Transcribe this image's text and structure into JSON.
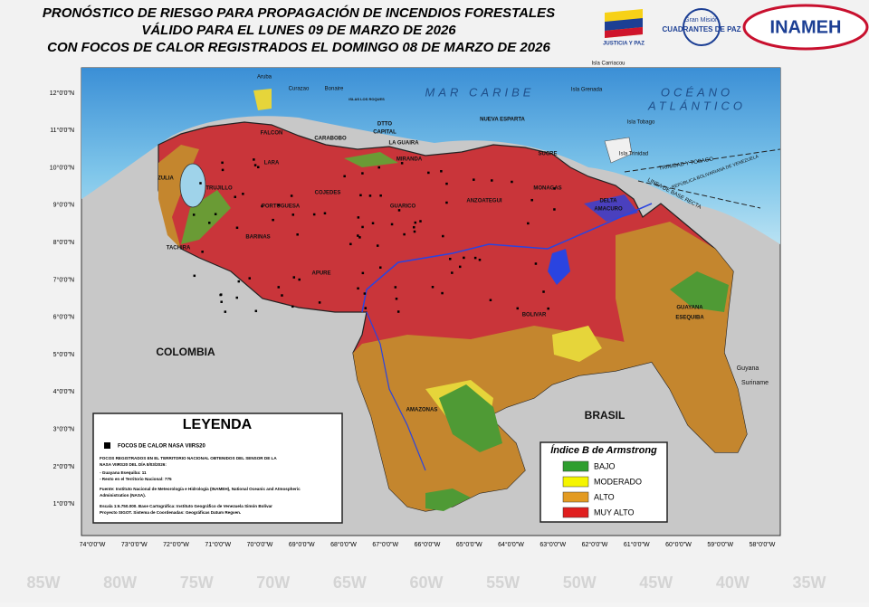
{
  "header": {
    "title_lines": [
      "PRONÓSTICO DE RIESGO PARA PROPAGACIÓN DE INCENDIOS FORESTALES",
      "VÁLIDO PARA EL LUNES 09 DE MARZO DE 2026",
      "CON FOCOS DE CALOR REGISTRADOS EL DOMINGO 08 DE MARZO DE 2026"
    ],
    "logos": [
      "JUSTICIA Y PAZ",
      "Gran Misión",
      "CUADRANTES DE PAZ",
      "INAMEH"
    ]
  },
  "map": {
    "latitude_labels": [
      "12°0'0\"N",
      "11°0'0\"N",
      "10°0'0\"N",
      "9°0'0\"N",
      "8°0'0\"N",
      "7°0'0\"N",
      "6°0'0\"N",
      "5°0'0\"N",
      "4°0'0\"N",
      "3°0'0\"N",
      "2°0'0\"N",
      "1°0'0\"N"
    ],
    "longitude_labels": [
      "74°0'0\"W",
      "73°0'0\"W",
      "72°0'0\"W",
      "71°0'0\"W",
      "70°0'0\"W",
      "69°0'0\"W",
      "68°0'0\"W",
      "67°0'0\"W",
      "66°0'0\"W",
      "65°0'0\"W",
      "64°0'0\"W",
      "63°0'0\"W",
      "62°0'0\"W",
      "61°0'0\"W",
      "60°0'0\"W",
      "59°0'0\"W",
      "58°0'0\"W"
    ],
    "place_labels": [
      "Aruba",
      "Curazao",
      "Bonaire",
      "ISLAS LOS ROQUES",
      "Isla Carriacou",
      "Isla Grenada",
      "Isla Tobago",
      "Isla Trinidad",
      "MAR CARIBE",
      "OCÉANO",
      "ATLÁNTICO",
      "DTTO",
      "CAPITAL",
      "NUEVA ESPARTA",
      "CARABOBO",
      "LA GUAIRA",
      "MIRANDA",
      "FALCON",
      "LARA",
      "ZULIA",
      "TRUJILLO",
      "COJEDES",
      "PORTUGUESA",
      "GUARICO",
      "ANZOATEGUI",
      "MONAGAS",
      "SUCRE",
      "DELTA",
      "AMACURO",
      "BARINAS",
      "APURE",
      "TACHIRA",
      "BOLIVAR",
      "AMAZONAS",
      "COLOMBIA",
      "BRASIL",
      "GUAYANA",
      "ESEQUIBA",
      "Guyana",
      "Suriname",
      "TRINIDAD Y TOBAGO",
      "REPÚBLICA BOLIVARIANA DE VENEZUELA",
      "LINEA DE BASE RECTA"
    ],
    "background_labels": [
      "85W",
      "80W",
      "75W",
      "70W",
      "65W",
      "60W",
      "55W",
      "50W",
      "45W",
      "40W",
      "35W"
    ]
  },
  "legend": {
    "title": "LEYENDA",
    "hotspot_label": "FOCOS DE CALOR NASA VIIRS20",
    "lines": [
      "FOCOS REGISTRADOS EN EL TERRITORIO NACIONAL OBTENIDOS DEL SENSOR DE LA",
      "NASA VIIRS20 DEL DÍA 8/03/2026:",
      "- Guayana Esequiba: 11",
      "- Resto en el Territorio Nacional: 775",
      "Fuente: Instituto Nacional de Meteorología e Hidrología (INAMEH), National Oceanic and Atmospheric",
      "Administration (NASA).",
      "Escala 1:6.750.000. Base Cartográfica: Instituto Geográfico de Venezuela Simón Bolívar",
      "Proyecto SIGOT. Sistema de Coordenadas: Geográficas Datum Regven."
    ]
  },
  "index_legend": {
    "title": "Índice B de Armstrong",
    "classes": [
      {
        "label": "BAJO",
        "color": "#2f9e2f"
      },
      {
        "label": "MODERADO",
        "color": "#f5f500"
      },
      {
        "label": "ALTO",
        "color": "#e39b22"
      },
      {
        "label": "MUY ALTO",
        "color": "#e01e1e"
      }
    ]
  }
}
